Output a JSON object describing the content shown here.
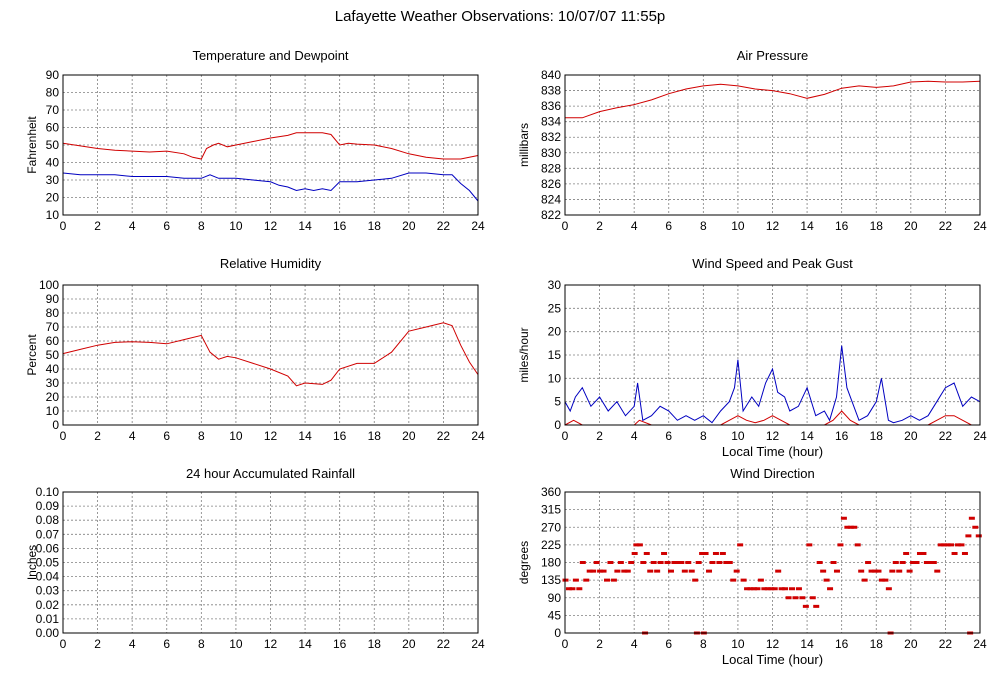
{
  "title": "Lafayette Weather Observations: 10/07/07 11:55p",
  "colors": {
    "red": "#d00000",
    "blue": "#0000c0"
  },
  "chart_data": [
    {
      "id": "temp",
      "type": "line",
      "title": "Temperature and Dewpoint",
      "xlabel": "",
      "ylabel": "Fahrenheit",
      "xlim": [
        0,
        24
      ],
      "ylim": [
        10,
        90
      ],
      "xticks": [
        "0",
        "2",
        "4",
        "6",
        "8",
        "10",
        "12",
        "14",
        "16",
        "18",
        "20",
        "22",
        "24"
      ],
      "yticks": [
        "10",
        "20",
        "30",
        "40",
        "50",
        "60",
        "70",
        "80",
        "90"
      ],
      "grid": true,
      "series": [
        {
          "color": "#d00000",
          "x": [
            0,
            1,
            2,
            3,
            4,
            5,
            6,
            7,
            7.5,
            8,
            8.3,
            8.7,
            9,
            9.5,
            10,
            11,
            12,
            13,
            13.5,
            14,
            15,
            15.5,
            16,
            16.5,
            17,
            18,
            19,
            20,
            21,
            22,
            23,
            24
          ],
          "y": [
            51,
            49.5,
            48,
            47,
            46.5,
            46,
            46.5,
            45,
            43,
            42,
            48,
            50,
            51,
            49,
            50,
            52,
            54,
            55.5,
            57,
            57,
            57,
            56,
            50,
            51,
            50.5,
            50,
            48,
            45,
            43,
            42,
            42,
            44
          ]
        },
        {
          "color": "#0000c0",
          "x": [
            0,
            1,
            2,
            3,
            4,
            5,
            6,
            7,
            8,
            8.5,
            9,
            10,
            11,
            12,
            12.5,
            13,
            13.5,
            14,
            14.5,
            15,
            15.5,
            16,
            17,
            18,
            19,
            20,
            21,
            22,
            22.5,
            23,
            23.5,
            24
          ],
          "y": [
            34,
            33,
            33,
            33,
            32,
            32,
            32,
            31,
            31,
            33,
            31,
            31,
            30,
            29,
            27,
            26,
            24,
            25,
            24,
            25,
            24,
            29,
            29,
            30,
            31,
            34,
            34,
            33,
            33,
            28,
            24,
            18
          ]
        }
      ]
    },
    {
      "id": "press",
      "type": "line",
      "title": "Air Pressure",
      "xlabel": "",
      "ylabel": "millibars",
      "xlim": [
        0,
        24
      ],
      "ylim": [
        822,
        840
      ],
      "xticks": [
        "0",
        "2",
        "4",
        "6",
        "8",
        "10",
        "12",
        "14",
        "16",
        "18",
        "20",
        "22",
        "24"
      ],
      "yticks": [
        "822",
        "824",
        "826",
        "828",
        "830",
        "832",
        "834",
        "836",
        "838",
        "840"
      ],
      "grid": true,
      "series": [
        {
          "color": "#d00000",
          "x": [
            0,
            1,
            2,
            3,
            4,
            5,
            6,
            7,
            8,
            9,
            10,
            11,
            12,
            13,
            14,
            15,
            16,
            17,
            18,
            19,
            20,
            21,
            22,
            23,
            24
          ],
          "y": [
            834.5,
            834.5,
            835.3,
            835.8,
            836.2,
            836.8,
            837.6,
            838.2,
            838.6,
            838.8,
            838.6,
            838.2,
            838,
            837.6,
            837,
            837.5,
            838.3,
            838.6,
            838.4,
            838.6,
            839.1,
            839.2,
            839.1,
            839.1,
            839.2
          ]
        }
      ]
    },
    {
      "id": "rh",
      "type": "line",
      "title": "Relative Humidity",
      "xlabel": "",
      "ylabel": "Percent",
      "xlim": [
        0,
        24
      ],
      "ylim": [
        0,
        100
      ],
      "xticks": [
        "0",
        "2",
        "4",
        "6",
        "8",
        "10",
        "12",
        "14",
        "16",
        "18",
        "20",
        "22",
        "24"
      ],
      "yticks": [
        "0",
        "10",
        "20",
        "30",
        "40",
        "50",
        "60",
        "70",
        "80",
        "90",
        "100"
      ],
      "grid": true,
      "series": [
        {
          "color": "#d00000",
          "x": [
            0,
            1,
            2,
            3,
            4,
            5,
            6,
            7,
            8,
            8.5,
            9,
            9.5,
            10,
            11,
            12,
            13,
            13.5,
            14,
            15,
            15.5,
            16,
            17,
            18,
            19,
            20,
            21,
            22,
            22.5,
            23,
            23.5,
            24
          ],
          "y": [
            51,
            54,
            57,
            59,
            59.5,
            59,
            58,
            61,
            64,
            52,
            47,
            49,
            48,
            44,
            40,
            35,
            28,
            30,
            29,
            32,
            40,
            44,
            44,
            52,
            67,
            70,
            73,
            71,
            57,
            45,
            36
          ]
        }
      ]
    },
    {
      "id": "wind",
      "type": "line",
      "title": "Wind Speed and Peak Gust",
      "xlabel": "Local Time (hour)",
      "ylabel": "miles/hour",
      "xlim": [
        0,
        24
      ],
      "ylim": [
        0,
        30
      ],
      "xticks": [
        "0",
        "2",
        "4",
        "6",
        "8",
        "10",
        "12",
        "14",
        "16",
        "18",
        "20",
        "22",
        "24"
      ],
      "yticks": [
        "0",
        "5",
        "10",
        "15",
        "20",
        "25",
        "30"
      ],
      "grid": true,
      "series": [
        {
          "color": "#0000c0",
          "x": [
            0,
            0.3,
            0.6,
            1,
            1.5,
            2,
            2.5,
            3,
            3.5,
            4,
            4.2,
            4.5,
            5,
            5.5,
            6,
            6.5,
            7,
            7.5,
            8,
            8.5,
            9,
            9.5,
            9.8,
            10,
            10.3,
            10.8,
            11.2,
            11.6,
            12,
            12.3,
            12.7,
            13,
            13.5,
            14,
            14.5,
            15,
            15.3,
            15.7,
            16,
            16.3,
            16.7,
            17,
            17.5,
            18,
            18.3,
            18.7,
            19,
            19.5,
            20,
            20.5,
            21,
            21.5,
            22,
            22.5,
            23,
            23.5,
            24
          ],
          "y": [
            5,
            3,
            6,
            8,
            4,
            6,
            3,
            5,
            2,
            4,
            9,
            1,
            2,
            4,
            3,
            1,
            2,
            1,
            2,
            0.5,
            3,
            5,
            8,
            14,
            3,
            6,
            4,
            9,
            12,
            7,
            6,
            3,
            4,
            8,
            2,
            3,
            1,
            6,
            17,
            8,
            4,
            1,
            2,
            5,
            10,
            1,
            0.5,
            1,
            2,
            1,
            2,
            5,
            8,
            9,
            4,
            6,
            5
          ]
        },
        {
          "color": "#d00000",
          "x": [
            0,
            0.5,
            1,
            1.5,
            2,
            3,
            4,
            4.3,
            5,
            6,
            7,
            8,
            8.5,
            9,
            9.5,
            10,
            10.5,
            11,
            11.5,
            12,
            12.5,
            13,
            13.5,
            14,
            14.5,
            15,
            15.5,
            16,
            16.5,
            17,
            17.5,
            18,
            19,
            20,
            21,
            21.5,
            22,
            22.5,
            23,
            23.5,
            24
          ],
          "y": [
            0,
            1,
            0,
            0,
            0,
            0,
            0,
            1,
            0,
            0,
            0,
            0,
            0,
            0,
            1,
            2,
            1,
            0.5,
            1,
            2,
            1,
            0,
            0,
            0,
            0,
            0,
            1,
            3,
            1,
            0,
            0,
            0,
            0,
            0,
            0,
            1,
            2,
            2,
            1,
            0,
            0
          ]
        }
      ]
    },
    {
      "id": "rain",
      "type": "line",
      "title": "24 hour Accumulated Rainfall",
      "xlabel": "",
      "ylabel": "Inches",
      "xlim": [
        0,
        24
      ],
      "ylim": [
        0,
        0.1
      ],
      "xticks": [
        "0",
        "2",
        "4",
        "6",
        "8",
        "10",
        "12",
        "14",
        "16",
        "18",
        "20",
        "22",
        "24"
      ],
      "yticks": [
        "0.00",
        "0.01",
        "0.02",
        "0.03",
        "0.04",
        "0.05",
        "0.06",
        "0.07",
        "0.08",
        "0.09",
        "0.10"
      ],
      "grid": true,
      "series": [
        {
          "color": "#d00000",
          "x": [
            0,
            24
          ],
          "y": [
            0,
            0
          ]
        }
      ]
    },
    {
      "id": "dir",
      "type": "scatter",
      "title": "Wind Direction",
      "xlabel": "Local Time (hour)",
      "ylabel": "degrees",
      "xlim": [
        0,
        24
      ],
      "ylim": [
        0,
        360
      ],
      "xticks": [
        "0",
        "2",
        "4",
        "6",
        "8",
        "10",
        "12",
        "14",
        "16",
        "18",
        "20",
        "22",
        "24"
      ],
      "yticks": [
        "0",
        "45",
        "90",
        "135",
        "180",
        "225",
        "270",
        "315",
        "360"
      ],
      "grid": true,
      "series": [
        {
          "color": "#d00000",
          "x": [
            0,
            0.2,
            0.4,
            0.6,
            0.8,
            1,
            1.2,
            1.4,
            1.6,
            1.8,
            2,
            2.2,
            2.4,
            2.6,
            2.8,
            3,
            3.2,
            3.4,
            3.6,
            3.8,
            4,
            4.1,
            4.3,
            4.5,
            4.7,
            4.9,
            5.1,
            5.3,
            5.5,
            5.7,
            5.9,
            6.1,
            6.3,
            6.5,
            6.7,
            6.9,
            7.1,
            7.3,
            7.5,
            7.7,
            7.9,
            8.1,
            8.3,
            8.5,
            8.7,
            8.9,
            9.1,
            9.3,
            9.5,
            9.7,
            9.9,
            10.1,
            10.3,
            10.5,
            10.7,
            10.9,
            11.1,
            11.3,
            11.5,
            11.7,
            11.9,
            12.1,
            12.3,
            12.5,
            12.7,
            12.9,
            13.1,
            13.3,
            13.5,
            13.7,
            13.9,
            14.1,
            14.3,
            14.5,
            14.7,
            14.9,
            15.1,
            15.3,
            15.5,
            15.7,
            15.9,
            16.1,
            16.3,
            16.5,
            16.7,
            16.9,
            17.1,
            17.3,
            17.5,
            17.7,
            17.9,
            18.1,
            18.3,
            18.5,
            18.7,
            18.9,
            19.1,
            19.3,
            19.5,
            19.7,
            19.9,
            20.1,
            20.3,
            20.5,
            20.7,
            20.9,
            21.1,
            21.3,
            21.5,
            21.7,
            21.9,
            22.1,
            22.3,
            22.5,
            22.7,
            22.9,
            23.1,
            23.3,
            23.5,
            23.7,
            23.9,
            4.6,
            7.6,
            8.0,
            18.8,
            23.4
          ],
          "y": [
            135,
            113,
            113,
            135,
            113,
            180,
            135,
            158,
            158,
            180,
            158,
            158,
            135,
            180,
            135,
            158,
            180,
            158,
            158,
            180,
            203,
            225,
            225,
            180,
            203,
            158,
            180,
            158,
            180,
            203,
            180,
            158,
            180,
            180,
            180,
            158,
            180,
            158,
            135,
            180,
            203,
            203,
            158,
            180,
            203,
            180,
            203,
            180,
            180,
            135,
            158,
            225,
            135,
            113,
            113,
            113,
            113,
            135,
            113,
            113,
            113,
            113,
            158,
            113,
            113,
            90,
            113,
            90,
            113,
            90,
            68,
            225,
            90,
            68,
            180,
            158,
            135,
            113,
            180,
            158,
            225,
            293,
            270,
            270,
            270,
            225,
            158,
            135,
            180,
            158,
            158,
            158,
            135,
            135,
            113,
            158,
            180,
            158,
            180,
            203,
            158,
            180,
            180,
            203,
            203,
            180,
            180,
            180,
            158,
            225,
            225,
            225,
            225,
            203,
            225,
            225,
            203,
            248,
            293,
            270,
            248,
            0,
            0,
            0,
            0,
            0
          ]
        }
      ]
    }
  ]
}
